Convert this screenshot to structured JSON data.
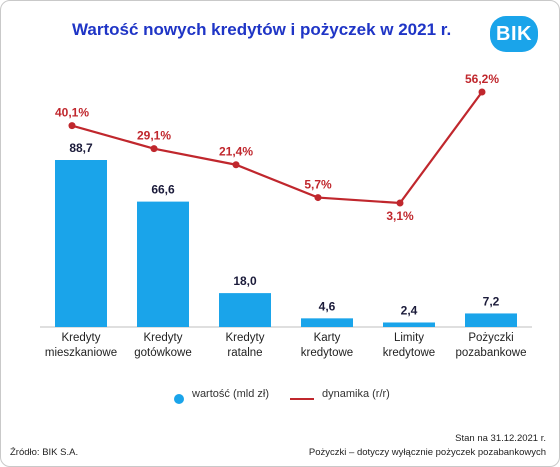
{
  "title": "Wartość nowych kredytów i pożyczek w 2021 r.",
  "logo_text": "BIK",
  "chart_data": {
    "type": "bar",
    "categories": [
      [
        "Kredyty",
        "mieszkaniowe"
      ],
      [
        "Kredyty",
        "gotówkowe"
      ],
      [
        "Kredyty",
        "ratalne"
      ],
      [
        "Karty",
        "kredytowe"
      ],
      [
        "Limity",
        "kredytowe"
      ],
      [
        "Pożyczki",
        "pozabankowe"
      ]
    ],
    "series": [
      {
        "name": "wartość (mld zł)",
        "type": "bar",
        "values": [
          88.7,
          66.6,
          18.0,
          4.6,
          2.4,
          7.2
        ],
        "labels": [
          "88,7",
          "66,6",
          "18,0",
          "4,6",
          "2,4",
          "7,2"
        ],
        "color": "#1aa4ea"
      },
      {
        "name": "dynamika (r/r)",
        "type": "line",
        "values": [
          40.1,
          29.1,
          21.4,
          5.7,
          3.1,
          56.2
        ],
        "labels": [
          "40,1%",
          "29,1%",
          "21,4%",
          "5,7%",
          "3,1%",
          "56,2%"
        ],
        "color": "#c0272d"
      }
    ]
  },
  "footer": {
    "source": "Źródło: BIK S.A.",
    "note_line1": "Stan na 31.12.2021 r.",
    "note_line2": "Pożyczki – dotyczy wyłącznie pożyczek pozabankowych"
  }
}
